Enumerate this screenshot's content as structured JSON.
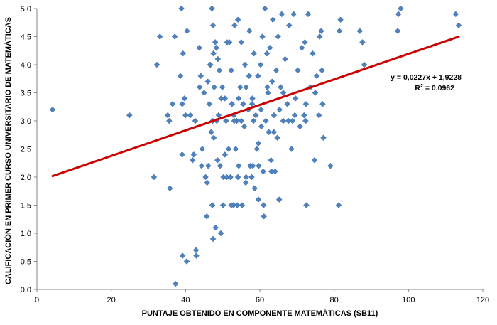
{
  "chart_data": {
    "type": "scatter",
    "title": "",
    "xlabel": "PUNTAJE OBTENIDO EN COMPONENTE MATEMÁTICAS (SB11)",
    "ylabel": "CALIFICACIÓN EN PRIMER CURSO UNIVERSITARIO DE MATEMÁTICAS",
    "xlim": [
      0,
      120
    ],
    "ylim": [
      0,
      5
    ],
    "x_ticks": [
      "0",
      "20",
      "40",
      "60",
      "80",
      "100",
      "120"
    ],
    "y_ticks": [
      "0,0",
      "0,5",
      "1,0",
      "1,5",
      "2,0",
      "2,5",
      "3,0",
      "3,5",
      "4,0",
      "4,5",
      "5,0"
    ],
    "grid": false,
    "legend": "none",
    "colors": {
      "points": "#4f81bd",
      "trendline": "#cc0000"
    },
    "trendline": {
      "slope": 0.0227,
      "intercept": 1.9228,
      "x_range": [
        4.2,
        113.5
      ],
      "equation_label": "y = 0,0227x + 1,9228",
      "r2_prefix": "R",
      "r2_suffix": " = 0,0962"
    },
    "points": [
      [
        4.2,
        3.2
      ],
      [
        24.9,
        3.1
      ],
      [
        31.5,
        2.0
      ],
      [
        32.3,
        4.0
      ],
      [
        33.1,
        4.5
      ],
      [
        35.2,
        3.1
      ],
      [
        35.6,
        3.0
      ],
      [
        35.8,
        1.8
      ],
      [
        36.5,
        3.3
      ],
      [
        37.1,
        4.5
      ],
      [
        37.3,
        0.1
      ],
      [
        38.6,
        3.8
      ],
      [
        38.9,
        5.0
      ],
      [
        39.1,
        3.3
      ],
      [
        39.3,
        4.2
      ],
      [
        39.1,
        2.4
      ],
      [
        39.2,
        0.6
      ],
      [
        40.0,
        3.1
      ],
      [
        39.7,
        3.4
      ],
      [
        40.4,
        4.6
      ],
      [
        40.3,
        0.5
      ],
      [
        41.3,
        3.1
      ],
      [
        41.9,
        2.3
      ],
      [
        42.2,
        2.4
      ],
      [
        42.6,
        3.0
      ],
      [
        42.8,
        0.7
      ],
      [
        42.9,
        0.6
      ],
      [
        43.7,
        4.3
      ],
      [
        43.8,
        3.6
      ],
      [
        44.1,
        3.8
      ],
      [
        44.3,
        2.2
      ],
      [
        44.5,
        2.5
      ],
      [
        45.0,
        3.5
      ],
      [
        45.4,
        2.0
      ],
      [
        45.7,
        1.3
      ],
      [
        45.8,
        1.9
      ],
      [
        46.1,
        2.2
      ],
      [
        46.0,
        3.7
      ],
      [
        46.4,
        3.3
      ],
      [
        46.6,
        4.0
      ],
      [
        46.9,
        2.8
      ],
      [
        47.2,
        1.5
      ],
      [
        47.1,
        5.0
      ],
      [
        47.4,
        4.7
      ],
      [
        47.5,
        4.2
      ],
      [
        47.3,
        3.0
      ],
      [
        47.4,
        0.9
      ],
      [
        47.6,
        2.7
      ],
      [
        47.7,
        3.6
      ],
      [
        48.0,
        4.4
      ],
      [
        48.1,
        1.1
      ],
      [
        48.3,
        4.3
      ],
      [
        48.6,
        2.3
      ],
      [
        48.7,
        4.1
      ],
      [
        48.9,
        3.1
      ],
      [
        49.1,
        3.9
      ],
      [
        49.3,
        2.2
      ],
      [
        49.5,
        1.0
      ],
      [
        49.6,
        3.4
      ],
      [
        49.9,
        3.6
      ],
      [
        50.1,
        1.5
      ],
      [
        50.2,
        2.0
      ],
      [
        50.6,
        2.4
      ],
      [
        50.9,
        3.0
      ],
      [
        51.2,
        4.4
      ],
      [
        51.6,
        2.5
      ],
      [
        51.8,
        4.4
      ],
      [
        52.1,
        2.0
      ],
      [
        52.3,
        3.9
      ],
      [
        52.5,
        3.3
      ],
      [
        52.9,
        1.5
      ],
      [
        53.0,
        3.1
      ],
      [
        53.2,
        4.7
      ],
      [
        53.5,
        2.5
      ],
      [
        53.8,
        3.0
      ],
      [
        54.1,
        4.8
      ],
      [
        54.3,
        2.2
      ],
      [
        54.7,
        3.6
      ],
      [
        55.0,
        4.4
      ],
      [
        55.2,
        1.5
      ],
      [
        55.5,
        3.3
      ],
      [
        55.8,
        2.9
      ],
      [
        56.0,
        4.0
      ],
      [
        56.2,
        1.9
      ],
      [
        56.3,
        3.6
      ],
      [
        56.9,
        3.2
      ],
      [
        57.2,
        4.6
      ],
      [
        57.4,
        2.2
      ],
      [
        57.8,
        2.0
      ],
      [
        58.0,
        3.4
      ],
      [
        58.1,
        2.2
      ],
      [
        58.4,
        4.2
      ],
      [
        58.6,
        1.8
      ],
      [
        58.9,
        3.1
      ],
      [
        59.2,
        2.5
      ],
      [
        59.5,
        3.8
      ],
      [
        59.6,
        1.6
      ],
      [
        60.2,
        4.0
      ],
      [
        60.4,
        2.9
      ],
      [
        60.7,
        4.5
      ],
      [
        60.9,
        2.1
      ],
      [
        61.1,
        1.3
      ],
      [
        61.4,
        5.0
      ],
      [
        61.6,
        3.0
      ],
      [
        61.9,
        4.2
      ],
      [
        62.2,
        3.5
      ],
      [
        62.4,
        2.8
      ],
      [
        62.7,
        4.3
      ],
      [
        63.0,
        2.3
      ],
      [
        63.3,
        3.7
      ],
      [
        63.5,
        4.8
      ],
      [
        63.8,
        3.1
      ],
      [
        64.1,
        2.1
      ],
      [
        64.4,
        3.9
      ],
      [
        64.7,
        2.7
      ],
      [
        64.9,
        4.5
      ],
      [
        65.2,
        1.6
      ],
      [
        65.6,
        3.6
      ],
      [
        65.9,
        4.9
      ],
      [
        66.3,
        3.0
      ],
      [
        66.8,
        4.1
      ],
      [
        67.4,
        3.3
      ],
      [
        67.9,
        4.7
      ],
      [
        68.5,
        2.5
      ],
      [
        69.1,
        4.9
      ],
      [
        69.6,
        3.4
      ],
      [
        70.2,
        3.9
      ],
      [
        70.8,
        2.9
      ],
      [
        71.3,
        4.3
      ],
      [
        71.9,
        3.1
      ],
      [
        72.5,
        1.5
      ],
      [
        73.0,
        4.9
      ],
      [
        73.6,
        3.6
      ],
      [
        74.2,
        4.2
      ],
      [
        74.7,
        2.3
      ],
      [
        75.3,
        3.8
      ],
      [
        75.9,
        3.1
      ],
      [
        76.5,
        4.6
      ],
      [
        77.1,
        2.7
      ],
      [
        76.9,
        3.3
      ],
      [
        79.0,
        2.2
      ],
      [
        81.2,
        1.5
      ],
      [
        81.4,
        4.6
      ],
      [
        81.7,
        4.8
      ],
      [
        86.9,
        4.6
      ],
      [
        87.6,
        4.4
      ],
      [
        88.1,
        4.0
      ],
      [
        97.1,
        4.6
      ],
      [
        97.3,
        4.9
      ],
      [
        97.9,
        5.0
      ],
      [
        112.7,
        4.9
      ],
      [
        113.5,
        4.7
      ],
      [
        46.7,
        4.0
      ],
      [
        48.4,
        3.0
      ],
      [
        50.6,
        3.4
      ],
      [
        53.1,
        3.0
      ],
      [
        54.1,
        2.0
      ],
      [
        54.3,
        3.4
      ],
      [
        55.0,
        3.0
      ],
      [
        57.1,
        3.8
      ],
      [
        57.9,
        3.3
      ],
      [
        58.3,
        3.0
      ],
      [
        59.7,
        2.2
      ],
      [
        60.3,
        3.2
      ],
      [
        62.0,
        3.6
      ],
      [
        63.8,
        2.8
      ],
      [
        65.3,
        3.2
      ],
      [
        66.3,
        3.5
      ],
      [
        68.8,
        3.0
      ],
      [
        69.4,
        3.1
      ],
      [
        72.3,
        3.0
      ],
      [
        72.4,
        3.3
      ],
      [
        74.9,
        3.5
      ],
      [
        76.7,
        3.9
      ],
      [
        51.1,
        2.0
      ],
      [
        52.3,
        1.5
      ],
      [
        53.9,
        1.5
      ],
      [
        56.3,
        2.0
      ],
      [
        59.6,
        2.6
      ],
      [
        61.0,
        1.5
      ],
      [
        63.1,
        2.1
      ],
      [
        67.7,
        3.0
      ],
      [
        72.1,
        4.4
      ],
      [
        76.1,
        4.5
      ]
    ]
  }
}
